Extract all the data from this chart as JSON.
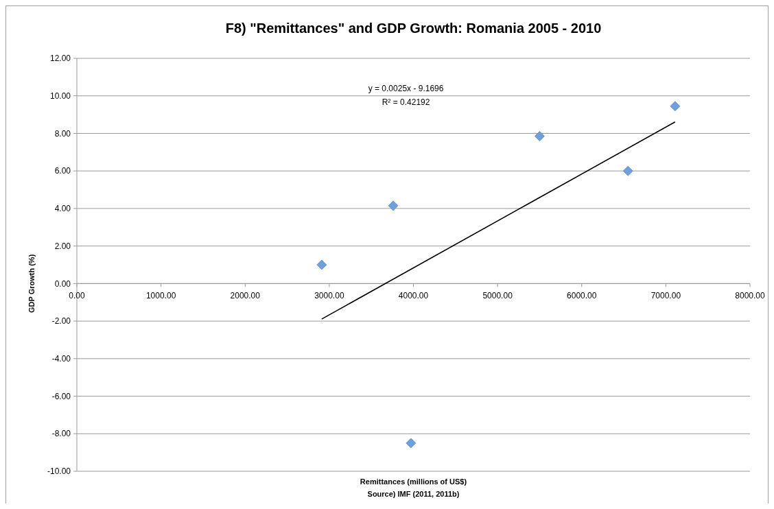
{
  "chart_data": {
    "type": "scatter",
    "title": "F8) \"Remittances\" and GDP Growth: Romania 2005 - 2010",
    "xlabel": "Remittances (millions of US$)",
    "ylabel": "GDP Growth (%)",
    "annotations": [
      "Source) IMF (2011, 2011b)",
      "y = 0.0025x - 9.1696",
      "R² = 0.42192"
    ],
    "series": [
      {
        "color": "#6fa0dc",
        "marker": "diamond",
        "x": [
          2910,
          3760,
          3970,
          5500,
          6550,
          7110
        ],
        "values": [
          1.0,
          4.15,
          -8.5,
          7.85,
          6.0,
          9.45
        ]
      },
      {
        "type": "line",
        "color": "#000000",
        "x": [
          2910,
          7110
        ],
        "values": [
          -1.89,
          8.61
        ]
      }
    ],
    "xlim": [
      0,
      8000
    ],
    "xticks": [
      {
        "value": 0,
        "label": "0.00"
      },
      {
        "value": 1000,
        "label": "1000.00"
      },
      {
        "value": 2000,
        "label": "2000.00"
      },
      {
        "value": 3000,
        "label": "3000.00"
      },
      {
        "value": 4000,
        "label": "4000.00"
      },
      {
        "value": 5000,
        "label": "5000.00"
      },
      {
        "value": 6000,
        "label": "6000.00"
      },
      {
        "value": 7000,
        "label": "7000.00"
      },
      {
        "value": 8000,
        "label": "8000.00"
      }
    ],
    "ylim": [
      -10,
      12
    ],
    "yticks": [
      {
        "value": -10,
        "label": "-10.00"
      },
      {
        "value": -8,
        "label": "-8.00"
      },
      {
        "value": -6,
        "label": "-6.00"
      },
      {
        "value": -4,
        "label": "-4.00"
      },
      {
        "value": -2,
        "label": "-2.00"
      },
      {
        "value": 0,
        "label": "0.00"
      },
      {
        "value": 2,
        "label": "2.00"
      },
      {
        "value": 4,
        "label": "4.00"
      },
      {
        "value": 6,
        "label": "6.00"
      },
      {
        "value": 8,
        "label": "8.00"
      },
      {
        "value": 10,
        "label": "10.00"
      },
      {
        "value": 12,
        "label": "12.00"
      }
    ],
    "grid": "y"
  }
}
